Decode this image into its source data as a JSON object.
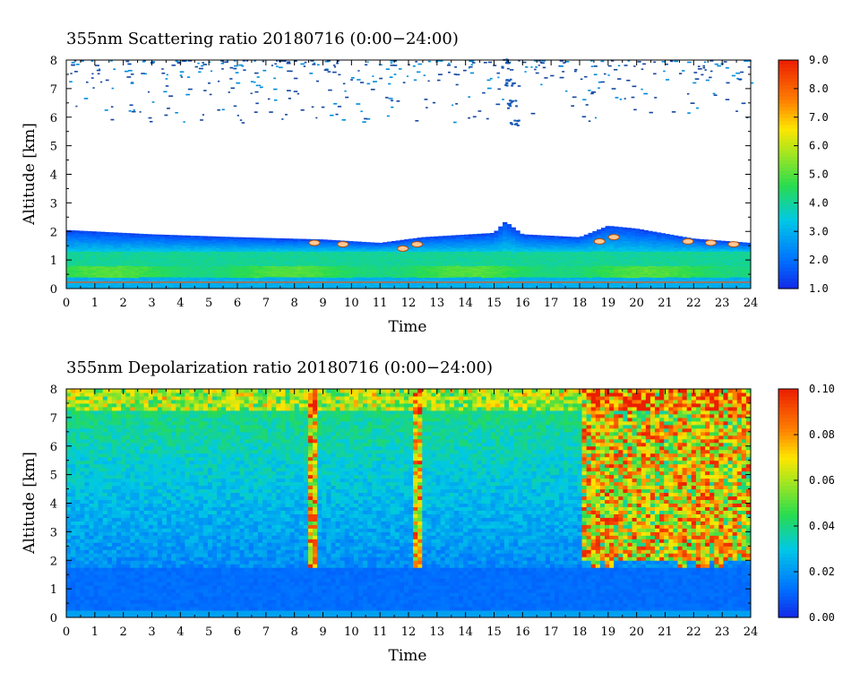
{
  "chart_data": [
    {
      "type": "heatmap",
      "title": "355nm Scattering ratio  20180716 (0:00−24:00)",
      "xlabel": "Time",
      "ylabel": "Altitude [km]",
      "xlim": [
        0,
        24
      ],
      "ylim": [
        0,
        8
      ],
      "x_ticks": [
        "0",
        "1",
        "2",
        "3",
        "4",
        "5",
        "6",
        "7",
        "8",
        "9",
        "10",
        "11",
        "12",
        "13",
        "14",
        "15",
        "16",
        "17",
        "18",
        "19",
        "20",
        "21",
        "22",
        "23",
        "24"
      ],
      "y_ticks": [
        "0",
        "1",
        "2",
        "3",
        "4",
        "5",
        "6",
        "7",
        "8"
      ],
      "colorbar": {
        "min": 1.0,
        "max": 9.0,
        "ticks": [
          "1.0",
          "2.0",
          "3.0",
          "4.0",
          "5.0",
          "6.0",
          "7.0",
          "8.0",
          "9.0"
        ]
      },
      "features": {
        "boundary_layer_top_km": [
          [
            0,
            2.05
          ],
          [
            3,
            1.9
          ],
          [
            6,
            1.8
          ],
          [
            9,
            1.72
          ],
          [
            11,
            1.6
          ],
          [
            12.5,
            1.8
          ],
          [
            15,
            1.95
          ],
          [
            15.4,
            2.35
          ],
          [
            16,
            1.9
          ],
          [
            18,
            1.8
          ],
          [
            19,
            2.2
          ],
          [
            20,
            2.1
          ],
          [
            22,
            1.75
          ],
          [
            24,
            1.6
          ]
        ],
        "cloud_patches": [
          [
            8.7,
            1.6
          ],
          [
            9.7,
            1.55
          ],
          [
            11.8,
            1.4
          ],
          [
            12.3,
            1.55
          ],
          [
            18.7,
            1.65
          ],
          [
            19.2,
            1.8
          ],
          [
            21.8,
            1.65
          ],
          [
            22.6,
            1.6
          ],
          [
            23.4,
            1.55
          ]
        ],
        "upper_clouds_km": [
          [
            15.4,
            7.9
          ],
          [
            15.5,
            7.2
          ],
          [
            15.6,
            6.5
          ],
          [
            15.7,
            5.8
          ]
        ]
      }
    },
    {
      "type": "heatmap",
      "title": "355nm Depolarization ratio  20180716 (0:00−24:00)",
      "xlabel": "Time",
      "ylabel": "Altitude [km]",
      "xlim": [
        0,
        24
      ],
      "ylim": [
        0,
        8
      ],
      "x_ticks": [
        "0",
        "1",
        "2",
        "3",
        "4",
        "5",
        "6",
        "7",
        "8",
        "9",
        "10",
        "11",
        "12",
        "13",
        "14",
        "15",
        "16",
        "17",
        "18",
        "19",
        "20",
        "21",
        "22",
        "23",
        "24"
      ],
      "y_ticks": [
        "0",
        "1",
        "2",
        "3",
        "4",
        "5",
        "6",
        "7",
        "8"
      ],
      "colorbar": {
        "min": 0.0,
        "max": 0.1,
        "ticks": [
          "0.00",
          "0.02",
          "0.04",
          "0.06",
          "0.08",
          "0.10"
        ]
      },
      "features": {
        "high_depol_columns_hours": [
          8.6,
          12.3,
          18.6,
          19.0,
          21.6,
          22.3,
          22.9
        ],
        "high_depol_region": {
          "x": [
            18,
            24
          ],
          "y": [
            2,
            8
          ]
        },
        "column_base_km": 1.6
      }
    }
  ]
}
